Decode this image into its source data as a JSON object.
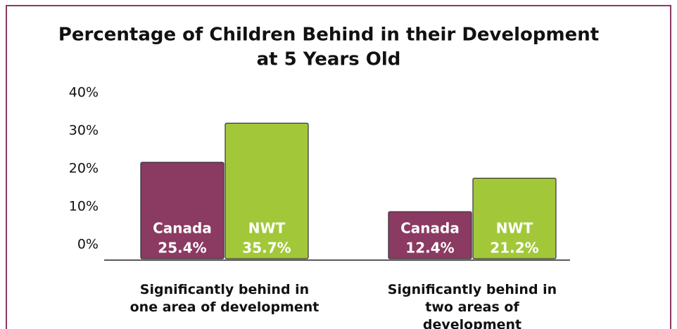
{
  "chart_data": {
    "type": "bar",
    "title": "Percentage of Children Behind in their Development at 5 Years Old",
    "categories": [
      "Significantly behind in one area of development",
      "Significantly behind in two areas of development"
    ],
    "series": [
      {
        "name": "Canada",
        "color": "#8b3a62",
        "values": [
          25.4,
          12.4
        ],
        "value_labels": [
          "25.4%",
          "12.4%"
        ]
      },
      {
        "name": "NWT",
        "color": "#a2c83a",
        "values": [
          35.7,
          21.2
        ],
        "value_labels": [
          "35.7%",
          "21.2%"
        ]
      }
    ],
    "ylim": [
      0,
      40
    ],
    "yticks": [
      {
        "value": 0,
        "label": "0%"
      },
      {
        "value": 10,
        "label": "10%"
      },
      {
        "value": 20,
        "label": "20%"
      },
      {
        "value": 30,
        "label": "30%"
      },
      {
        "value": 40,
        "label": "40%"
      }
    ],
    "grid": false
  }
}
